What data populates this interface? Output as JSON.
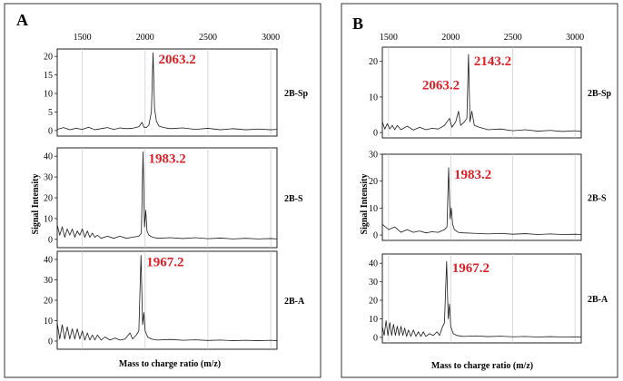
{
  "chart_data": [
    {
      "type": "line",
      "panel": "A",
      "xlabel": "Mass to charge ratio (m/z)",
      "ylabel": "Signal Intensity",
      "xlim": [
        1300,
        3050
      ],
      "x_ticks": [
        "1500",
        "2000",
        "2500",
        "3000"
      ],
      "grid": true,
      "subplots": [
        {
          "sample": "2B-Sp",
          "peak_label": "2063.2",
          "peak_x": 2063.2,
          "peak_value": 21,
          "ylim": [
            -1.5,
            22
          ],
          "y_ticks": [
            "0",
            "5",
            "10",
            "15",
            "20"
          ],
          "points": [
            [
              1300,
              0.3
            ],
            [
              1350,
              0.8
            ],
            [
              1400,
              0.2
            ],
            [
              1450,
              0.6
            ],
            [
              1500,
              0.3
            ],
            [
              1550,
              0.9
            ],
            [
              1600,
              0.2
            ],
            [
              1650,
              0.5
            ],
            [
              1700,
              0.8
            ],
            [
              1750,
              0.3
            ],
            [
              1800,
              0.7
            ],
            [
              1850,
              0.5
            ],
            [
              1900,
              0.6
            ],
            [
              1950,
              1
            ],
            [
              1975,
              2.2
            ],
            [
              1990,
              0.9
            ],
            [
              2010,
              0.8
            ],
            [
              2030,
              1.5
            ],
            [
              2050,
              5
            ],
            [
              2063.2,
              21
            ],
            [
              2075,
              6
            ],
            [
              2090,
              2.5
            ],
            [
              2110,
              1.2
            ],
            [
              2150,
              0.8
            ],
            [
              2200,
              0.5
            ],
            [
              2300,
              0.7
            ],
            [
              2400,
              0.3
            ],
            [
              2500,
              0.6
            ],
            [
              2600,
              0.2
            ],
            [
              2700,
              0.5
            ],
            [
              2800,
              0.2
            ],
            [
              2900,
              0.4
            ],
            [
              3000,
              0.2
            ],
            [
              3050,
              0.3
            ]
          ]
        },
        {
          "sample": "2B-S",
          "peak_label": "1983.2",
          "peak_x": 1983.2,
          "peak_value": 42,
          "ylim": [
            -4,
            44
          ],
          "y_ticks": [
            "0",
            "10",
            "20",
            "30",
            "40"
          ],
          "points": [
            [
              1300,
              7
            ],
            [
              1320,
              2
            ],
            [
              1340,
              6
            ],
            [
              1360,
              1
            ],
            [
              1380,
              5
            ],
            [
              1400,
              2
            ],
            [
              1420,
              5
            ],
            [
              1440,
              1
            ],
            [
              1460,
              4
            ],
            [
              1480,
              2
            ],
            [
              1500,
              5
            ],
            [
              1520,
              1
            ],
            [
              1540,
              4
            ],
            [
              1560,
              1
            ],
            [
              1580,
              3
            ],
            [
              1600,
              1
            ],
            [
              1620,
              2
            ],
            [
              1650,
              0.5
            ],
            [
              1700,
              1.5
            ],
            [
              1750,
              0.5
            ],
            [
              1800,
              1.5
            ],
            [
              1850,
              0.5
            ],
            [
              1900,
              1
            ],
            [
              1950,
              1.5
            ],
            [
              1970,
              3
            ],
            [
              1983.2,
              42
            ],
            [
              1995,
              6
            ],
            [
              2005,
              14
            ],
            [
              2015,
              4
            ],
            [
              2030,
              2
            ],
            [
              2060,
              1
            ],
            [
              2100,
              0.5
            ],
            [
              2200,
              0.8
            ],
            [
              2300,
              0.4
            ],
            [
              2400,
              0.8
            ],
            [
              2500,
              0.3
            ],
            [
              2600,
              0.6
            ],
            [
              2700,
              0.2
            ],
            [
              2800,
              0.5
            ],
            [
              2900,
              0.2
            ],
            [
              3000,
              0.4
            ],
            [
              3050,
              0.2
            ]
          ]
        },
        {
          "sample": "2B-A",
          "peak_label": "1967.2",
          "peak_x": 1967.2,
          "peak_value": 42,
          "ylim": [
            -4,
            44
          ],
          "y_ticks": [
            "0",
            "10",
            "20",
            "30",
            "40"
          ],
          "points": [
            [
              1300,
              9
            ],
            [
              1320,
              1
            ],
            [
              1340,
              8
            ],
            [
              1360,
              1
            ],
            [
              1380,
              7
            ],
            [
              1400,
              1
            ],
            [
              1420,
              6
            ],
            [
              1440,
              1
            ],
            [
              1460,
              6
            ],
            [
              1480,
              1
            ],
            [
              1500,
              5
            ],
            [
              1520,
              0.5
            ],
            [
              1540,
              4
            ],
            [
              1560,
              0.5
            ],
            [
              1580,
              3
            ],
            [
              1600,
              0.5
            ],
            [
              1620,
              3
            ],
            [
              1650,
              0.5
            ],
            [
              1680,
              2
            ],
            [
              1720,
              0.5
            ],
            [
              1760,
              1.5
            ],
            [
              1800,
              0.5
            ],
            [
              1840,
              1
            ],
            [
              1880,
              4
            ],
            [
              1900,
              1
            ],
            [
              1930,
              3
            ],
            [
              1950,
              5
            ],
            [
              1967.2,
              42
            ],
            [
              1980,
              8
            ],
            [
              1990,
              14
            ],
            [
              2000,
              5
            ],
            [
              2020,
              2
            ],
            [
              2050,
              1
            ],
            [
              2100,
              0.5
            ],
            [
              2200,
              0.8
            ],
            [
              2300,
              0.4
            ],
            [
              2400,
              0.6
            ],
            [
              2500,
              0.3
            ],
            [
              2600,
              0.5
            ],
            [
              2700,
              0.2
            ],
            [
              2800,
              0.4
            ],
            [
              2900,
              0.2
            ],
            [
              3000,
              0.4
            ],
            [
              3050,
              0.2
            ]
          ]
        }
      ]
    },
    {
      "type": "line",
      "panel": "B",
      "xlabel": "Mass to charge ratio (m/z)",
      "ylabel": "Signal Intensity",
      "xlim": [
        1450,
        3050
      ],
      "x_ticks": [
        "1500",
        "2000",
        "2500",
        "3000"
      ],
      "grid": true,
      "subplots": [
        {
          "sample": "2B-Sp",
          "peak_label": "2143.2",
          "peak_x": 2143.2,
          "peak_value": 22,
          "secondary_label": "2063.2",
          "secondary_x": 2063.2,
          "secondary_value": 6,
          "ylim": [
            -1.5,
            24
          ],
          "y_ticks": [
            "0",
            "10",
            "20"
          ],
          "points": [
            [
              1450,
              3
            ],
            [
              1470,
              1
            ],
            [
              1490,
              2.5
            ],
            [
              1510,
              1
            ],
            [
              1530,
              2
            ],
            [
              1550,
              0.8
            ],
            [
              1570,
              2
            ],
            [
              1600,
              0.8
            ],
            [
              1650,
              1.8
            ],
            [
              1700,
              0.7
            ],
            [
              1750,
              1.5
            ],
            [
              1800,
              0.8
            ],
            [
              1850,
              1.2
            ],
            [
              1900,
              1
            ],
            [
              1950,
              2
            ],
            [
              1990,
              4
            ],
            [
              2010,
              1.5
            ],
            [
              2040,
              3
            ],
            [
              2063.2,
              6
            ],
            [
              2080,
              2
            ],
            [
              2110,
              3
            ],
            [
              2130,
              4
            ],
            [
              2143.2,
              22
            ],
            [
              2155,
              3
            ],
            [
              2170,
              6
            ],
            [
              2190,
              2
            ],
            [
              2230,
              1.5
            ],
            [
              2300,
              0.8
            ],
            [
              2400,
              1
            ],
            [
              2500,
              0.5
            ],
            [
              2600,
              0.8
            ],
            [
              2700,
              0.4
            ],
            [
              2800,
              0.6
            ],
            [
              2900,
              0.3
            ],
            [
              3000,
              0.5
            ],
            [
              3050,
              0.3
            ]
          ]
        },
        {
          "sample": "2B-S",
          "peak_label": "1983.2",
          "peak_x": 1983.2,
          "peak_value": 25,
          "ylim": [
            -2,
            30
          ],
          "y_ticks": [
            "0",
            "10",
            "20",
            "30"
          ],
          "points": [
            [
              1450,
              4
            ],
            [
              1500,
              2
            ],
            [
              1550,
              3
            ],
            [
              1600,
              1
            ],
            [
              1650,
              2
            ],
            [
              1700,
              1
            ],
            [
              1750,
              1.5
            ],
            [
              1800,
              0.8
            ],
            [
              1850,
              1.2
            ],
            [
              1900,
              1
            ],
            [
              1950,
              2
            ],
            [
              1970,
              3
            ],
            [
              1983.2,
              25
            ],
            [
              1995,
              6
            ],
            [
              2005,
              10
            ],
            [
              2015,
              4
            ],
            [
              2030,
              2
            ],
            [
              2060,
              1
            ],
            [
              2100,
              0.8
            ],
            [
              2200,
              0.6
            ],
            [
              2300,
              0.4
            ],
            [
              2400,
              0.6
            ],
            [
              2500,
              0.3
            ],
            [
              2600,
              0.5
            ],
            [
              2700,
              0.2
            ],
            [
              2800,
              0.4
            ],
            [
              2900,
              0.2
            ],
            [
              3000,
              0.3
            ],
            [
              3050,
              0.2
            ]
          ]
        },
        {
          "sample": "2B-A",
          "peak_label": "1967.2",
          "peak_x": 1967.2,
          "peak_value": 41,
          "ylim": [
            -3,
            45
          ],
          "y_ticks": [
            "0",
            "10",
            "20",
            "30",
            "40"
          ],
          "points": [
            [
              1450,
              6
            ],
            [
              1465,
              1
            ],
            [
              1480,
              9
            ],
            [
              1495,
              1
            ],
            [
              1510,
              8
            ],
            [
              1525,
              1
            ],
            [
              1540,
              7
            ],
            [
              1555,
              1
            ],
            [
              1570,
              6
            ],
            [
              1585,
              1
            ],
            [
              1600,
              6
            ],
            [
              1615,
              1
            ],
            [
              1630,
              5
            ],
            [
              1645,
              0.5
            ],
            [
              1660,
              4
            ],
            [
              1680,
              0.5
            ],
            [
              1700,
              4
            ],
            [
              1720,
              0.5
            ],
            [
              1740,
              3
            ],
            [
              1760,
              0.5
            ],
            [
              1780,
              3
            ],
            [
              1800,
              0.5
            ],
            [
              1830,
              2
            ],
            [
              1860,
              1
            ],
            [
              1890,
              3
            ],
            [
              1910,
              1
            ],
            [
              1930,
              5
            ],
            [
              1950,
              8
            ],
            [
              1967.2,
              41
            ],
            [
              1980,
              10
            ],
            [
              1990,
              18
            ],
            [
              2000,
              6
            ],
            [
              2020,
              2
            ],
            [
              2050,
              1
            ],
            [
              2100,
              0.5
            ],
            [
              2200,
              0.8
            ],
            [
              2300,
              0.4
            ],
            [
              2400,
              0.6
            ],
            [
              2500,
              0.3
            ],
            [
              2600,
              0.5
            ],
            [
              2700,
              0.2
            ],
            [
              2800,
              0.4
            ],
            [
              2900,
              0.2
            ],
            [
              3000,
              0.3
            ],
            [
              3050,
              0.2
            ]
          ]
        }
      ]
    }
  ]
}
